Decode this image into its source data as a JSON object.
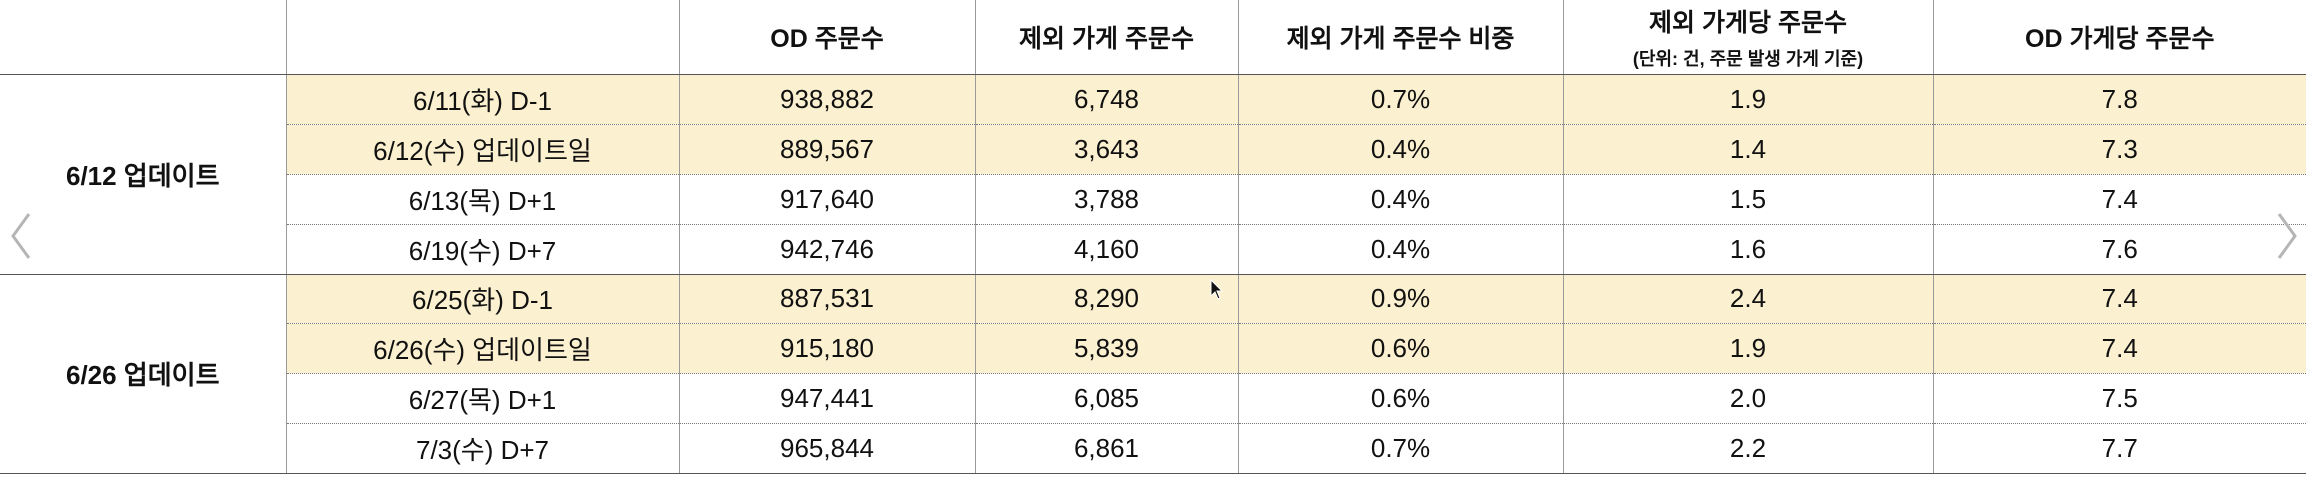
{
  "headers": {
    "blank": "",
    "od_orders": "OD 주문수",
    "excluded_orders": "제외 가게 주문수",
    "excluded_ratio": "제외 가게 주문수 비중",
    "excluded_per_store": "제외 가게당 주문수",
    "excluded_per_store_note": "(단위: 건, 주문 발생 가게 기준)",
    "od_per_store": "OD 가게당 주문수"
  },
  "groups": [
    {
      "label": "6/12 업데이트",
      "rows": [
        {
          "date": "6/11(화) D-1",
          "od": "938,882",
          "excl": "6,748",
          "ratio": "0.7%",
          "per_excl": "1.9",
          "per_od": "7.8",
          "highlight": true
        },
        {
          "date": "6/12(수) 업데이트일",
          "od": "889,567",
          "excl": "3,643",
          "ratio": "0.4%",
          "per_excl": "1.4",
          "per_od": "7.3",
          "highlight": true
        },
        {
          "date": "6/13(목) D+1",
          "od": "917,640",
          "excl": "3,788",
          "ratio": "0.4%",
          "per_excl": "1.5",
          "per_od": "7.4",
          "highlight": false
        },
        {
          "date": "6/19(수) D+7",
          "od": "942,746",
          "excl": "4,160",
          "ratio": "0.4%",
          "per_excl": "1.6",
          "per_od": "7.6",
          "highlight": false
        }
      ]
    },
    {
      "label": "6/26 업데이트",
      "rows": [
        {
          "date": "6/25(화) D-1",
          "od": "887,531",
          "excl": "8,290",
          "ratio": "0.9%",
          "per_excl": "2.4",
          "per_od": "7.4",
          "highlight": true
        },
        {
          "date": "6/26(수) 업데이트일",
          "od": "915,180",
          "excl": "5,839",
          "ratio": "0.6%",
          "per_excl": "1.9",
          "per_od": "7.4",
          "highlight": true
        },
        {
          "date": "6/27(목) D+1",
          "od": "947,441",
          "excl": "6,085",
          "ratio": "0.6%",
          "per_excl": "2.0",
          "per_od": "7.5",
          "highlight": false
        },
        {
          "date": "7/3(수) D+7",
          "od": "965,844",
          "excl": "6,861",
          "ratio": "0.7%",
          "per_excl": "2.2",
          "per_od": "7.7",
          "highlight": false
        }
      ]
    }
  ],
  "nav": {
    "prev_icon": "chevron-left-icon",
    "next_icon": "chevron-right-icon"
  },
  "colors": {
    "highlight": "#fbf0cf",
    "arrow": "#b5b5b5"
  }
}
